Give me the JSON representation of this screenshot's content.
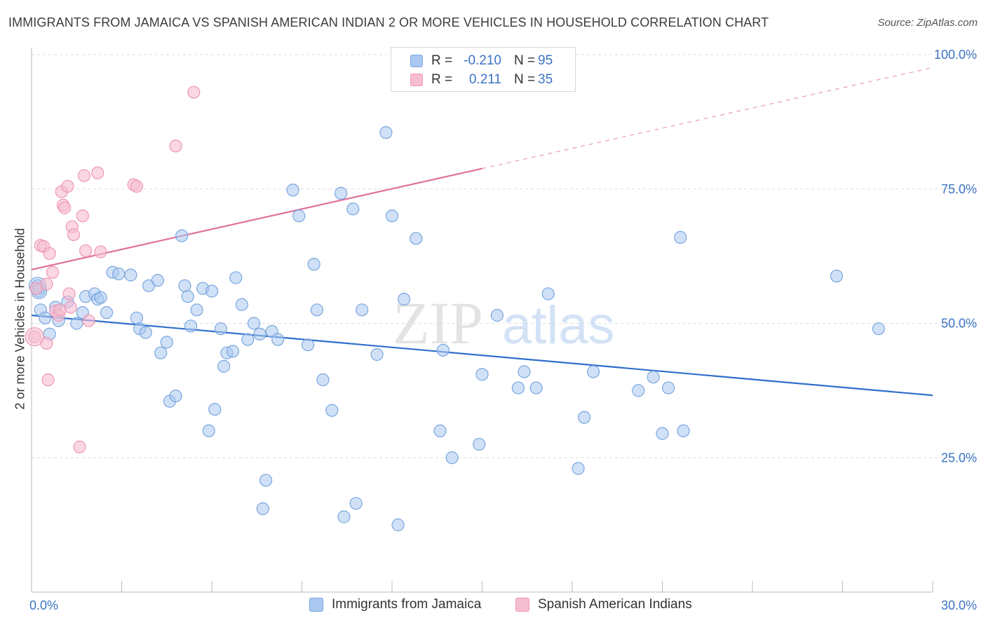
{
  "title": "IMMIGRANTS FROM JAMAICA VS SPANISH AMERICAN INDIAN 2 OR MORE VEHICLES IN HOUSEHOLD CORRELATION CHART",
  "source": "Source: ZipAtlas.com",
  "watermark": {
    "zip": "ZIP",
    "atlas": "atlas"
  },
  "legend": {
    "rows": [
      {
        "label": "R = ",
        "r": "-0.210",
        "n_label": "N = ",
        "n": "95"
      },
      {
        "label": "R = ",
        "r": "0.211",
        "n_label": "N = ",
        "n": "35"
      }
    ]
  },
  "bottom_legend": [
    "Immigrants from Jamaica",
    "Spanish American Indians"
  ],
  "colors": {
    "blue_fill": "#aac8f0",
    "blue_stroke": "#7aa6de",
    "blue_line": "#2f6fcc",
    "pink_fill": "#f6bdd0",
    "pink_stroke": "#ee97b4",
    "pink_line": "#e0719b",
    "axis_text": "#3b73c4",
    "grid": "#dddddd"
  },
  "chart_data": {
    "type": "scatter",
    "title": "IMMIGRANTS FROM JAMAICA VS SPANISH AMERICAN INDIAN 2 OR MORE VEHICLES IN HOUSEHOLD CORRELATION CHART",
    "xlabel": "",
    "ylabel": "2 or more Vehicles in Household",
    "xlim": [
      0,
      30
    ],
    "ylim": [
      0,
      100
    ],
    "x_tick_labels": [
      "0.0%",
      "30.0%"
    ],
    "y_tick_labels": [
      "25.0%",
      "50.0%",
      "75.0%",
      "100.0%"
    ],
    "y_ticks": [
      25,
      50,
      75,
      100
    ],
    "grid": true,
    "legend_position": "top-center",
    "series": [
      {
        "name": "Immigrants from Jamaica",
        "color": "#aac8f0",
        "trend": {
          "x": [
            0,
            30
          ],
          "y": [
            51.5,
            36.6
          ],
          "style": "solid"
        },
        "points": [
          [
            0.2,
            57.0
          ],
          [
            0.25,
            56.0
          ],
          [
            0.3,
            52.5
          ],
          [
            0.45,
            51.0
          ],
          [
            0.6,
            48.0
          ],
          [
            0.8,
            53.0
          ],
          [
            0.9,
            50.5
          ],
          [
            1.2,
            54.0
          ],
          [
            1.5,
            50.0
          ],
          [
            1.7,
            52.0
          ],
          [
            1.8,
            55.0
          ],
          [
            2.1,
            55.5
          ],
          [
            2.2,
            54.5
          ],
          [
            2.3,
            54.8
          ],
          [
            2.5,
            52.0
          ],
          [
            2.7,
            59.5
          ],
          [
            2.9,
            59.2
          ],
          [
            3.3,
            59.0
          ],
          [
            3.5,
            51.0
          ],
          [
            3.6,
            49.0
          ],
          [
            3.8,
            48.3
          ],
          [
            3.9,
            57.0
          ],
          [
            4.2,
            58.0
          ],
          [
            4.3,
            44.5
          ],
          [
            4.5,
            46.5
          ],
          [
            4.6,
            35.5
          ],
          [
            4.8,
            36.5
          ],
          [
            5.0,
            66.3
          ],
          [
            5.1,
            57.0
          ],
          [
            5.2,
            55.0
          ],
          [
            5.3,
            49.5
          ],
          [
            5.5,
            52.5
          ],
          [
            5.7,
            56.5
          ],
          [
            5.9,
            30.0
          ],
          [
            6.0,
            56.0
          ],
          [
            6.1,
            34.0
          ],
          [
            6.3,
            49.0
          ],
          [
            6.4,
            42.0
          ],
          [
            6.5,
            44.5
          ],
          [
            6.7,
            44.8
          ],
          [
            6.8,
            58.5
          ],
          [
            7.0,
            53.5
          ],
          [
            7.2,
            47.0
          ],
          [
            7.4,
            50.0
          ],
          [
            7.6,
            48.0
          ],
          [
            7.7,
            15.5
          ],
          [
            7.8,
            20.8
          ],
          [
            8.0,
            48.5
          ],
          [
            8.2,
            47.0
          ],
          [
            8.7,
            74.8
          ],
          [
            8.9,
            70.0
          ],
          [
            9.2,
            46.0
          ],
          [
            9.4,
            61.0
          ],
          [
            9.5,
            52.5
          ],
          [
            9.7,
            39.5
          ],
          [
            10.0,
            33.8
          ],
          [
            10.3,
            74.2
          ],
          [
            10.4,
            14.0
          ],
          [
            10.7,
            71.3
          ],
          [
            10.8,
            16.5
          ],
          [
            11.0,
            52.5
          ],
          [
            11.5,
            44.2
          ],
          [
            11.8,
            85.5
          ],
          [
            12.0,
            70.0
          ],
          [
            12.2,
            12.5
          ],
          [
            12.4,
            54.5
          ],
          [
            12.8,
            65.8
          ],
          [
            13.6,
            30.0
          ],
          [
            13.7,
            45.0
          ],
          [
            14.0,
            25.0
          ],
          [
            14.9,
            27.5
          ],
          [
            15.0,
            40.5
          ],
          [
            15.5,
            51.5
          ],
          [
            16.2,
            38.0
          ],
          [
            16.4,
            41.0
          ],
          [
            16.8,
            38.0
          ],
          [
            17.2,
            55.5
          ],
          [
            18.2,
            23.0
          ],
          [
            18.4,
            32.5
          ],
          [
            18.7,
            41.0
          ],
          [
            20.2,
            37.5
          ],
          [
            20.7,
            40.0
          ],
          [
            21.0,
            29.5
          ],
          [
            21.2,
            38.0
          ],
          [
            21.6,
            66.0
          ],
          [
            21.7,
            30.0
          ],
          [
            26.8,
            58.8
          ],
          [
            28.2,
            49.0
          ]
        ]
      },
      {
        "name": "Spanish American Indians",
        "color": "#f6bdd0",
        "trend": {
          "x": [
            0,
            15
          ],
          "y": [
            60.0,
            78.8
          ],
          "style": "solid",
          "extended_to": [
            30,
            97.6
          ],
          "extended_style": "dashed"
        },
        "points": [
          [
            0.1,
            47.5
          ],
          [
            0.15,
            56.5
          ],
          [
            0.3,
            64.5
          ],
          [
            0.4,
            64.3
          ],
          [
            0.5,
            57.3
          ],
          [
            0.5,
            46.3
          ],
          [
            0.55,
            39.5
          ],
          [
            0.6,
            63.0
          ],
          [
            0.7,
            59.5
          ],
          [
            0.8,
            52.3
          ],
          [
            0.9,
            51.5
          ],
          [
            0.95,
            52.5
          ],
          [
            1.0,
            74.5
          ],
          [
            1.05,
            72.0
          ],
          [
            1.1,
            71.5
          ],
          [
            1.2,
            75.5
          ],
          [
            1.25,
            55.5
          ],
          [
            1.3,
            53.0
          ],
          [
            1.35,
            68.0
          ],
          [
            1.4,
            66.5
          ],
          [
            1.6,
            27.0
          ],
          [
            1.7,
            70.0
          ],
          [
            1.75,
            77.5
          ],
          [
            1.8,
            63.5
          ],
          [
            1.9,
            50.5
          ],
          [
            2.2,
            78.0
          ],
          [
            2.3,
            63.3
          ],
          [
            3.4,
            75.8
          ],
          [
            3.5,
            75.5
          ],
          [
            4.8,
            83.0
          ],
          [
            5.4,
            93.0
          ]
        ]
      }
    ]
  }
}
